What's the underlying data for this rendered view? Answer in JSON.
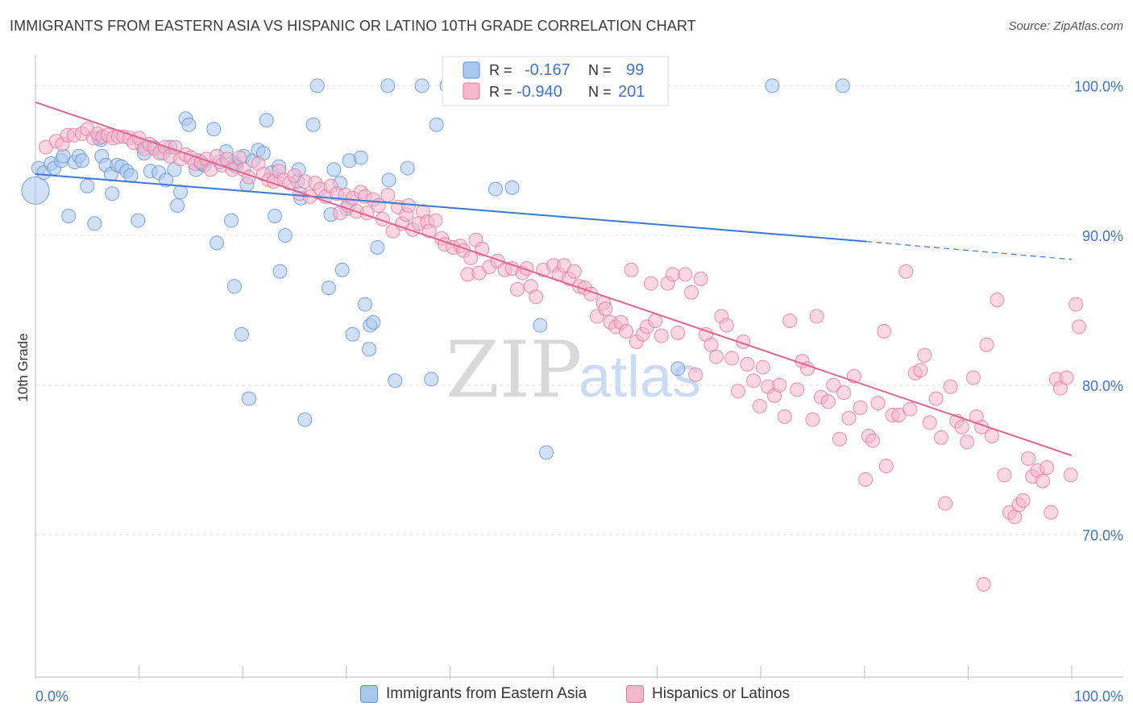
{
  "title": "IMMIGRANTS FROM EASTERN ASIA VS HISPANIC OR LATINO 10TH GRADE CORRELATION CHART",
  "source": "Source: ZipAtlas.com",
  "watermark": {
    "zip": "ZIP",
    "atlas": "atlas"
  },
  "colors": {
    "blue_fill": "#a9c8f0",
    "blue_stroke": "#5b8fd6",
    "blue_line": "#3b78d8",
    "pink_fill": "#f6b6cb",
    "pink_stroke": "#e6749a",
    "pink_line": "#e0648f",
    "axis_label": "#3f74c9",
    "grid": "#dddddd"
  },
  "legend_stats": [
    {
      "r_label": "R =",
      "r_value": "-0.167",
      "n_label": "N =",
      "n_value": "99"
    },
    {
      "r_label": "R =",
      "r_value": "-0.940",
      "n_label": "N =",
      "n_value": "201"
    }
  ],
  "legend_bottom": [
    "Immigrants from Eastern Asia",
    "Hispanics or Latinos"
  ],
  "chart_data": {
    "type": "scatter",
    "title": "IMMIGRANTS FROM EASTERN ASIA VS HISPANIC OR LATINO 10TH GRADE CORRELATION CHART",
    "xlabel": "",
    "ylabel": "10th Grade",
    "xlim": [
      0,
      100
    ],
    "ylim": [
      60.5,
      102.5
    ],
    "x_tick_labels": [
      "0.0%",
      "100.0%"
    ],
    "y_ticks": [
      70,
      80,
      90,
      100
    ],
    "y_tick_labels": [
      "70.0%",
      "80.0%",
      "90.0%",
      "100.0%"
    ],
    "grid": true,
    "legend_position": "top-center",
    "series": [
      {
        "name": "Immigrants from Eastern Asia",
        "r": -0.167,
        "n": 99,
        "trend": {
          "x0": 0,
          "y0": 94.1,
          "x1": 80.2,
          "y1": 89.6,
          "dash_to_x": 100,
          "dash_to_y": 88.4
        },
        "points": [
          [
            0,
            93.0
          ],
          [
            0.3,
            94.5
          ],
          [
            0.8,
            94.2
          ],
          [
            1.5,
            94.8
          ],
          [
            1.8,
            94.5
          ],
          [
            2.5,
            95.0
          ],
          [
            2.7,
            95.3
          ],
          [
            3.2,
            91.3
          ],
          [
            3.8,
            94.9
          ],
          [
            4.2,
            95.3
          ],
          [
            4.5,
            95.0
          ],
          [
            5,
            93.3
          ],
          [
            5.7,
            90.8
          ],
          [
            6.1,
            96.5
          ],
          [
            6.3,
            96.4
          ],
          [
            6.4,
            95.3
          ],
          [
            6.8,
            94.7
          ],
          [
            7.3,
            94.1
          ],
          [
            7.4,
            92.8
          ],
          [
            7.9,
            94.7
          ],
          [
            8.3,
            94.6
          ],
          [
            8.8,
            94.3
          ],
          [
            9.2,
            94.0
          ],
          [
            9.9,
            91.0
          ],
          [
            10.3,
            96.0
          ],
          [
            10.5,
            95.5
          ],
          [
            11.1,
            94.3
          ],
          [
            11.4,
            95.9
          ],
          [
            11.9,
            94.2
          ],
          [
            12.3,
            95.5
          ],
          [
            12.6,
            93.7
          ],
          [
            13,
            95.9
          ],
          [
            13.4,
            94.4
          ],
          [
            13.7,
            92.0
          ],
          [
            14,
            92.9
          ],
          [
            14.5,
            97.8
          ],
          [
            14.8,
            97.4
          ],
          [
            15.5,
            94.4
          ],
          [
            15.7,
            95.0
          ],
          [
            16,
            94.8
          ],
          [
            16.3,
            94.7
          ],
          [
            17.2,
            97.1
          ],
          [
            17.5,
            89.5
          ],
          [
            17.8,
            94.9
          ],
          [
            18.4,
            95.6
          ],
          [
            18.9,
            91.0
          ],
          [
            19.2,
            86.6
          ],
          [
            19.2,
            94.7
          ],
          [
            19.3,
            94.8
          ],
          [
            19.4,
            94.6
          ],
          [
            19.9,
            83.4
          ],
          [
            20.4,
            93.4
          ],
          [
            20.1,
            95.3
          ],
          [
            20.6,
            79.1
          ],
          [
            21,
            95.0
          ],
          [
            21.5,
            95.7
          ],
          [
            22,
            95.5
          ],
          [
            22.3,
            97.7
          ],
          [
            22.8,
            94.2
          ],
          [
            23.1,
            91.3
          ],
          [
            23.5,
            94.6
          ],
          [
            23.6,
            87.6
          ],
          [
            24.1,
            90.0
          ],
          [
            25.3,
            93.6
          ],
          [
            25.4,
            94.4
          ],
          [
            25.6,
            92.5
          ],
          [
            26,
            77.7
          ],
          [
            26.8,
            97.4
          ],
          [
            27.2,
            100
          ],
          [
            28.5,
            91.4
          ],
          [
            28.8,
            94.4
          ],
          [
            28.3,
            86.5
          ],
          [
            29.4,
            93.5
          ],
          [
            29.6,
            87.7
          ],
          [
            30,
            91.8
          ],
          [
            30.3,
            95.0
          ],
          [
            30.6,
            83.4
          ],
          [
            31.4,
            95.2
          ],
          [
            31.8,
            85.4
          ],
          [
            32.3,
            84.0
          ],
          [
            32.2,
            82.4
          ],
          [
            32.6,
            84.2
          ],
          [
            33,
            89.2
          ],
          [
            34.1,
            93.7
          ],
          [
            34,
            100
          ],
          [
            34.7,
            80.3
          ],
          [
            35.9,
            94.5
          ],
          [
            37.3,
            100
          ],
          [
            38.2,
            80.4
          ],
          [
            38.7,
            97.4
          ],
          [
            39.7,
            100
          ],
          [
            42,
            100
          ],
          [
            44.4,
            93.1
          ],
          [
            46,
            93.2
          ],
          [
            48.7,
            84.0
          ],
          [
            49.3,
            75.5
          ],
          [
            52.8,
            100
          ],
          [
            62,
            81.1
          ],
          [
            71.1,
            100
          ],
          [
            77.9,
            100
          ]
        ]
      },
      {
        "name": "Hispanics or Latinos",
        "r": -0.94,
        "n": 201,
        "trend": {
          "x0": 0,
          "y0": 98.9,
          "x1": 100,
          "y1": 75.3
        },
        "points": [
          [
            1,
            95.9
          ],
          [
            2,
            96.3
          ],
          [
            2.6,
            96.1
          ],
          [
            3.1,
            96.7
          ],
          [
            3.7,
            96.7
          ],
          [
            4.5,
            96.8
          ],
          [
            5,
            97.1
          ],
          [
            5.6,
            96.5
          ],
          [
            6,
            96.8
          ],
          [
            6.5,
            96.6
          ],
          [
            7,
            96.7
          ],
          [
            7.5,
            96.5
          ],
          [
            8,
            96.6
          ],
          [
            8.5,
            96.6
          ],
          [
            9.1,
            96.5
          ],
          [
            9.5,
            96.2
          ],
          [
            10,
            96.5
          ],
          [
            10.5,
            95.8
          ],
          [
            11,
            96.1
          ],
          [
            11.5,
            95.8
          ],
          [
            12,
            95.5
          ],
          [
            12.5,
            95.9
          ],
          [
            13,
            95.3
          ],
          [
            13.5,
            95.9
          ],
          [
            14,
            95.1
          ],
          [
            14.5,
            95.4
          ],
          [
            15,
            95.2
          ],
          [
            15.4,
            94.8
          ],
          [
            16,
            94.9
          ],
          [
            16.5,
            95.1
          ],
          [
            16.9,
            94.4
          ],
          [
            17.5,
            95.3
          ],
          [
            18,
            94.7
          ],
          [
            18.5,
            95.1
          ],
          [
            19,
            94.4
          ],
          [
            19.7,
            95.2
          ],
          [
            20.1,
            94.4
          ],
          [
            20.6,
            93.9
          ],
          [
            21.5,
            94.8
          ],
          [
            22,
            94.1
          ],
          [
            22.5,
            93.7
          ],
          [
            23,
            93.6
          ],
          [
            23.5,
            94.3
          ],
          [
            24,
            93.7
          ],
          [
            24.5,
            93.5
          ],
          [
            25,
            94.0
          ],
          [
            25.5,
            92.8
          ],
          [
            26,
            93.6
          ],
          [
            26.5,
            92.6
          ],
          [
            27,
            93.5
          ],
          [
            27.5,
            93.1
          ],
          [
            28,
            92.6
          ],
          [
            28.5,
            93.3
          ],
          [
            29.1,
            92.8
          ],
          [
            29.4,
            91.5
          ],
          [
            29.9,
            92.7
          ],
          [
            30.2,
            92.0
          ],
          [
            30.6,
            92.5
          ],
          [
            31,
            91.6
          ],
          [
            31.4,
            92.9
          ],
          [
            31.8,
            92.6
          ],
          [
            32,
            91.5
          ],
          [
            32.6,
            92.4
          ],
          [
            33.1,
            92.0
          ],
          [
            33.5,
            91.1
          ],
          [
            34,
            92.7
          ],
          [
            34.5,
            90.3
          ],
          [
            35,
            91.9
          ],
          [
            35.4,
            90.8
          ],
          [
            35.8,
            91.4
          ],
          [
            36,
            92.0
          ],
          [
            36.4,
            90.4
          ],
          [
            37,
            90.8
          ],
          [
            37.4,
            91.6
          ],
          [
            37.8,
            90.9
          ],
          [
            38,
            90.3
          ],
          [
            38.6,
            91.0
          ],
          [
            39.2,
            89.8
          ],
          [
            39.5,
            89.4
          ],
          [
            40.3,
            89.2
          ],
          [
            41,
            89.3
          ],
          [
            41.3,
            89.0
          ],
          [
            41.7,
            87.4
          ],
          [
            42,
            88.5
          ],
          [
            42.5,
            89.7
          ],
          [
            42.8,
            87.5
          ],
          [
            43.1,
            89.1
          ],
          [
            43.8,
            87.9
          ],
          [
            44.6,
            88.3
          ],
          [
            45.3,
            87.7
          ],
          [
            46,
            87.8
          ],
          [
            46.5,
            86.4
          ],
          [
            47,
            87.5
          ],
          [
            47.4,
            87.8
          ],
          [
            47.8,
            86.6
          ],
          [
            48.3,
            85.9
          ],
          [
            49,
            87.7
          ],
          [
            50,
            88.0
          ],
          [
            50.5,
            87.4
          ],
          [
            51,
            88.0
          ],
          [
            51.5,
            87.1
          ],
          [
            52,
            87.6
          ],
          [
            52.5,
            86.6
          ],
          [
            53,
            86.5
          ],
          [
            53.6,
            86.1
          ],
          [
            54.2,
            84.6
          ],
          [
            54.8,
            85.5
          ],
          [
            55,
            85.1
          ],
          [
            55.5,
            84.2
          ],
          [
            56,
            83.9
          ],
          [
            56.5,
            84.2
          ],
          [
            57,
            83.6
          ],
          [
            57.5,
            87.7
          ],
          [
            58,
            82.9
          ],
          [
            58.6,
            83.4
          ],
          [
            59,
            83.9
          ],
          [
            59.4,
            86.8
          ],
          [
            59.8,
            84.3
          ],
          [
            60.4,
            83.3
          ],
          [
            61,
            86.8
          ],
          [
            61.5,
            87.4
          ],
          [
            62,
            83.5
          ],
          [
            62.7,
            87.4
          ],
          [
            63.3,
            86.2
          ],
          [
            63.7,
            80.7
          ],
          [
            64.2,
            87.1
          ],
          [
            64.7,
            83.4
          ],
          [
            65.2,
            82.7
          ],
          [
            65.7,
            81.9
          ],
          [
            66.2,
            84.6
          ],
          [
            66.7,
            84.0
          ],
          [
            67.2,
            81.8
          ],
          [
            67.8,
            79.6
          ],
          [
            68.3,
            82.9
          ],
          [
            68.7,
            81.4
          ],
          [
            69.3,
            80.3
          ],
          [
            69.9,
            78.6
          ],
          [
            70.2,
            81.2
          ],
          [
            70.7,
            79.9
          ],
          [
            71.3,
            79.3
          ],
          [
            71.8,
            80.0
          ],
          [
            72.3,
            77.9
          ],
          [
            72.8,
            84.3
          ],
          [
            73.5,
            79.7
          ],
          [
            74,
            81.6
          ],
          [
            74.5,
            81.1
          ],
          [
            75,
            77.7
          ],
          [
            75.4,
            84.6
          ],
          [
            75.8,
            79.2
          ],
          [
            76.5,
            78.9
          ],
          [
            77,
            80.0
          ],
          [
            77.6,
            76.4
          ],
          [
            78,
            79.5
          ],
          [
            78.5,
            77.8
          ],
          [
            79,
            80.6
          ],
          [
            79.6,
            78.5
          ],
          [
            80.1,
            73.7
          ],
          [
            80.4,
            76.6
          ],
          [
            80.8,
            76.3
          ],
          [
            81.3,
            78.8
          ],
          [
            81.9,
            83.6
          ],
          [
            82.1,
            74.6
          ],
          [
            82.7,
            78.0
          ],
          [
            83.3,
            78.0
          ],
          [
            84,
            87.6
          ],
          [
            84.4,
            78.4
          ],
          [
            84.9,
            80.8
          ],
          [
            85.4,
            81.0
          ],
          [
            85.8,
            82.0
          ],
          [
            86.3,
            77.5
          ],
          [
            86.9,
            79.1
          ],
          [
            87.4,
            76.5
          ],
          [
            87.8,
            72.1
          ],
          [
            88.3,
            79.9
          ],
          [
            88.9,
            77.6
          ],
          [
            89.4,
            77.2
          ],
          [
            89.9,
            76.2
          ],
          [
            90.5,
            80.5
          ],
          [
            90.8,
            77.9
          ],
          [
            91.3,
            77.2
          ],
          [
            91.8,
            82.7
          ],
          [
            92.3,
            76.6
          ],
          [
            92.8,
            85.7
          ],
          [
            93.5,
            74.0
          ],
          [
            94,
            71.5
          ],
          [
            94.5,
            71.2
          ],
          [
            94.9,
            72.0
          ],
          [
            95.3,
            72.3
          ],
          [
            95.8,
            75.1
          ],
          [
            96.2,
            73.9
          ],
          [
            96.7,
            74.3
          ],
          [
            97.2,
            73.6
          ],
          [
            97.6,
            74.5
          ],
          [
            98,
            71.5
          ],
          [
            98.5,
            80.4
          ],
          [
            98.9,
            79.8
          ],
          [
            99.5,
            80.5
          ],
          [
            99.9,
            74.0
          ],
          [
            100.4,
            85.4
          ],
          [
            100.7,
            83.9
          ],
          [
            91.5,
            66.7
          ]
        ]
      }
    ]
  }
}
